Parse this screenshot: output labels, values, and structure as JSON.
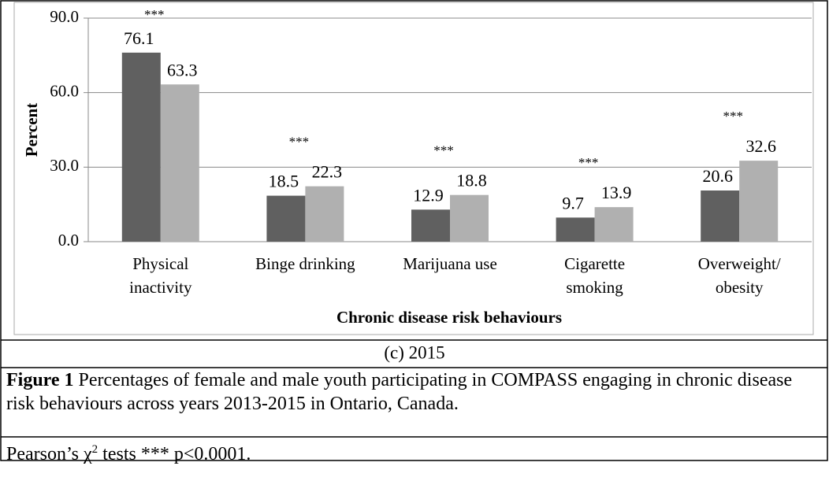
{
  "chart_data": {
    "type": "bar",
    "y_label": "Percent",
    "x_label": "Chronic disease risk behaviours",
    "categories": [
      [
        "Physical",
        "inactivity"
      ],
      [
        "Binge drinking"
      ],
      [
        "Marijuana use"
      ],
      [
        "Cigarette",
        "smoking"
      ],
      [
        "Overweight/",
        "obesity"
      ]
    ],
    "series": [
      {
        "color": "#606060",
        "values": [
          76.1,
          18.5,
          12.9,
          9.7,
          20.6
        ]
      },
      {
        "color": "#b0b0b0",
        "values": [
          63.3,
          22.3,
          18.8,
          13.9,
          32.6
        ]
      }
    ],
    "significance": [
      "***",
      "***",
      "***",
      "***",
      "***"
    ],
    "ylim": [
      0,
      90
    ],
    "yticks": [
      {
        "value": 0,
        "label": "0.0"
      },
      {
        "value": 30,
        "label": "30.0"
      },
      {
        "value": 60,
        "label": "60.0"
      },
      {
        "value": 90,
        "label": "90.0"
      }
    ],
    "grid": true
  },
  "panel_label": "(c) 2015",
  "caption": {
    "lead": "Figure 1",
    "text": " Percentages of female and male youth participating in COMPASS engaging in chronic disease risk behaviours across years 2013-2015 in Ontario, Canada."
  },
  "note": {
    "pre": "Pearson’s χ",
    "sup": "2",
    "post": " tests *** p<0.0001."
  }
}
